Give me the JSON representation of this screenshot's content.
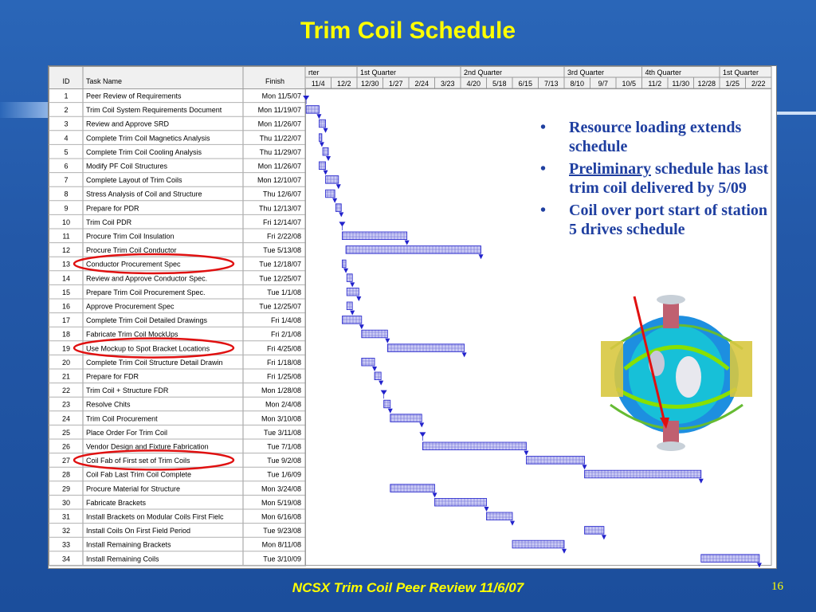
{
  "slide": {
    "title": "Trim Coil Schedule",
    "footer": "NCSX Trim Coil Peer Review   11/6/07",
    "page_number": "16"
  },
  "table": {
    "headers": {
      "id": "ID",
      "task": "Task Name",
      "finish": "Finish"
    },
    "rows": [
      {
        "id": "1",
        "name": "Peer Review of Requirements",
        "finish": "Mon 11/5/07"
      },
      {
        "id": "2",
        "name": "Trim Coil System Requirements Document",
        "finish": "Mon 11/19/07"
      },
      {
        "id": "3",
        "name": "Review and Approve SRD",
        "finish": "Mon 11/26/07"
      },
      {
        "id": "4",
        "name": "Complete Trim Coil Magnetics Analysis",
        "finish": "Thu 11/22/07"
      },
      {
        "id": "5",
        "name": "Complete Trim Coil Cooling Analysis",
        "finish": "Thu 11/29/07"
      },
      {
        "id": "6",
        "name": "Modify PF Coil Structures",
        "finish": "Mon 11/26/07"
      },
      {
        "id": "7",
        "name": "Complete Layout of Trim Coils",
        "finish": "Mon 12/10/07"
      },
      {
        "id": "8",
        "name": "Stress Analysis of Coil and Structure",
        "finish": "Thu 12/6/07"
      },
      {
        "id": "9",
        "name": "Prepare for PDR",
        "finish": "Thu 12/13/07"
      },
      {
        "id": "10",
        "name": "Trim Coil PDR",
        "finish": "Fri 12/14/07"
      },
      {
        "id": "11",
        "name": "Procure Trim Coil Insulation",
        "finish": "Fri 2/22/08"
      },
      {
        "id": "12",
        "name": "Procure Trim Coil Conductor",
        "finish": "Tue 5/13/08"
      },
      {
        "id": "13",
        "name": "Conductor Procurement Spec",
        "finish": "Tue 12/18/07"
      },
      {
        "id": "14",
        "name": "Review and Approve Conductor Spec.",
        "finish": "Tue 12/25/07"
      },
      {
        "id": "15",
        "name": "Prepare Trim Coil Procurement Spec.",
        "finish": "Tue 1/1/08"
      },
      {
        "id": "16",
        "name": "Approve Procurement Spec",
        "finish": "Tue 12/25/07"
      },
      {
        "id": "17",
        "name": "Complete Trim Coil Detailed Drawings",
        "finish": "Fri 1/4/08"
      },
      {
        "id": "18",
        "name": "Fabricate Trim Coil MockUps",
        "finish": "Fri 2/1/08"
      },
      {
        "id": "19",
        "name": "Use Mockup to Spot Bracket Locations",
        "finish": "Fri 4/25/08"
      },
      {
        "id": "20",
        "name": "Complete Trim Coil Structure Detail Drawin",
        "finish": "Fri 1/18/08"
      },
      {
        "id": "21",
        "name": "Prepare for FDR",
        "finish": "Fri 1/25/08"
      },
      {
        "id": "22",
        "name": "Trim Coil + Structure FDR",
        "finish": "Mon 1/28/08"
      },
      {
        "id": "23",
        "name": "Resolve Chits",
        "finish": "Mon 2/4/08"
      },
      {
        "id": "24",
        "name": "Trim Coil Procurement",
        "finish": "Mon 3/10/08"
      },
      {
        "id": "25",
        "name": "Place Order For Trim Coil",
        "finish": "Tue 3/11/08"
      },
      {
        "id": "26",
        "name": "Vendor Design and Fixture Fabrication",
        "finish": "Tue 7/1/08"
      },
      {
        "id": "27",
        "name": "Coil Fab of First set of Trim Coils",
        "finish": "Tue 9/2/08"
      },
      {
        "id": "28",
        "name": "Coil Fab Last Trim Coil Complete",
        "finish": "Tue 1/6/09"
      },
      {
        "id": "29",
        "name": "Procure Material for Structure",
        "finish": "Mon 3/24/08"
      },
      {
        "id": "30",
        "name": "Fabricate Brackets",
        "finish": "Mon 5/19/08"
      },
      {
        "id": "31",
        "name": "Install Brackets on Modular Coils First Fielc",
        "finish": "Mon 6/16/08"
      },
      {
        "id": "32",
        "name": "Install Coils On First Field Period",
        "finish": "Tue 9/23/08"
      },
      {
        "id": "33",
        "name": "Install Remaining Brackets",
        "finish": "Mon 8/11/08"
      },
      {
        "id": "34",
        "name": "Install Remaining Coils",
        "finish": "Tue 3/10/09"
      }
    ]
  },
  "gantt": {
    "quarters": [
      "rter",
      "1st Quarter",
      "2nd Quarter",
      "3rd Quarter",
      "4th Quarter",
      "1st Quarter"
    ],
    "ticks": [
      "11/4",
      "12/2",
      "12/30",
      "1/27",
      "2/24",
      "3/23",
      "4/20",
      "5/18",
      "6/15",
      "7/13",
      "8/10",
      "9/7",
      "10/5",
      "11/2",
      "11/30",
      "12/28",
      "1/25",
      "2/22"
    ],
    "bars": [
      {
        "row": 1,
        "start": "11/4",
        "finish": "11/5",
        "milestone": true
      },
      {
        "row": 2,
        "start": "11/5",
        "finish": "11/19"
      },
      {
        "row": 3,
        "start": "11/19",
        "finish": "11/26"
      },
      {
        "row": 4,
        "start": "11/19",
        "finish": "11/22"
      },
      {
        "row": 5,
        "start": "11/23",
        "finish": "11/29"
      },
      {
        "row": 6,
        "start": "11/19",
        "finish": "11/26"
      },
      {
        "row": 7,
        "start": "11/26",
        "finish": "12/10"
      },
      {
        "row": 8,
        "start": "11/26",
        "finish": "12/6"
      },
      {
        "row": 9,
        "start": "12/7",
        "finish": "12/13"
      },
      {
        "row": 10,
        "start": "12/14",
        "finish": "12/14",
        "milestone": true
      },
      {
        "row": 11,
        "start": "12/14",
        "finish": "2/22"
      },
      {
        "row": 12,
        "start": "12/18",
        "finish": "5/13"
      },
      {
        "row": 13,
        "start": "12/14",
        "finish": "12/18"
      },
      {
        "row": 14,
        "start": "12/19",
        "finish": "12/25"
      },
      {
        "row": 15,
        "start": "12/19",
        "finish": "1/1"
      },
      {
        "row": 16,
        "start": "12/19",
        "finish": "12/25"
      },
      {
        "row": 17,
        "start": "12/14",
        "finish": "1/4"
      },
      {
        "row": 18,
        "start": "1/4",
        "finish": "2/1"
      },
      {
        "row": 19,
        "start": "2/1",
        "finish": "4/25"
      },
      {
        "row": 20,
        "start": "1/4",
        "finish": "1/18"
      },
      {
        "row": 21,
        "start": "1/18",
        "finish": "1/25"
      },
      {
        "row": 22,
        "start": "1/28",
        "finish": "1/28",
        "milestone": true
      },
      {
        "row": 23,
        "start": "1/28",
        "finish": "2/4"
      },
      {
        "row": 24,
        "start": "2/4",
        "finish": "3/10"
      },
      {
        "row": 25,
        "start": "3/10",
        "finish": "3/11",
        "milestone": true
      },
      {
        "row": 26,
        "start": "3/11",
        "finish": "7/1"
      },
      {
        "row": 27,
        "start": "7/1",
        "finish": "9/2"
      },
      {
        "row": 28,
        "start": "9/2",
        "finish": "1/6"
      },
      {
        "row": 29,
        "start": "2/4",
        "finish": "3/24"
      },
      {
        "row": 30,
        "start": "3/24",
        "finish": "5/19"
      },
      {
        "row": 31,
        "start": "5/19",
        "finish": "6/16"
      },
      {
        "row": 32,
        "start": "9/2",
        "finish": "9/23"
      },
      {
        "row": 33,
        "start": "6/16",
        "finish": "8/11"
      },
      {
        "row": 34,
        "start": "1/6",
        "finish": "3/10"
      }
    ],
    "highlighted_rows": [
      13,
      19,
      27
    ],
    "bar_color": "#2222cc",
    "highlight_color": "#e01010"
  },
  "bullets": [
    {
      "parts": [
        {
          "text": "Resource loading extends schedule"
        }
      ]
    },
    {
      "parts": [
        {
          "text": "Preliminary",
          "underline": true
        },
        {
          "text": " schedule has last trim coil delivered by 5/09"
        }
      ]
    },
    {
      "parts": [
        {
          "text": "Coil over port start of station 5 drives schedule"
        }
      ]
    }
  ]
}
